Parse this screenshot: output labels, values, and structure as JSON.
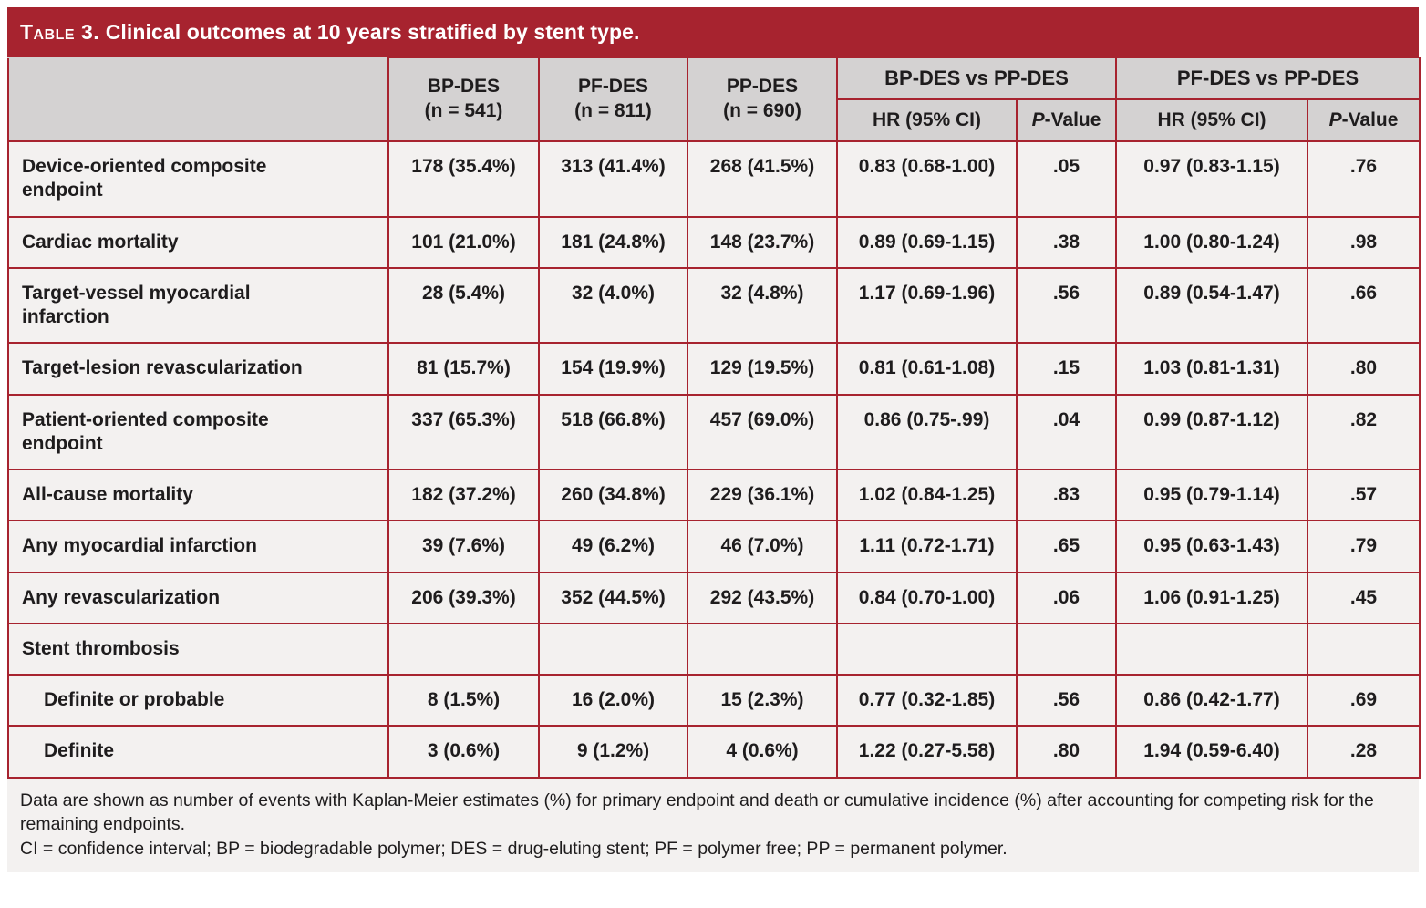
{
  "title": {
    "prefix": "Table 3.",
    "text": "Clinical outcomes at 10 years stratified by stent type."
  },
  "colors": {
    "accent_red": "#A7232F",
    "header_gray": "#D4D2D2",
    "row_offwhite": "#F3F1F0",
    "text": "#1E1C1D",
    "title_text": "#FFFFFF"
  },
  "table": {
    "stent_columns": [
      {
        "name": "BP-DES",
        "n": "(n = 541)"
      },
      {
        "name": "PF-DES",
        "n": "(n = 811)"
      },
      {
        "name": "PP-DES",
        "n": "(n = 690)"
      }
    ],
    "comparisons": [
      {
        "label": "BP-DES vs PP-DES",
        "hr_header": "HR (95% CI)",
        "p_header": "P-Value"
      },
      {
        "label": "PF-DES vs PP-DES",
        "hr_header": "HR (95% CI)",
        "p_header": "P-Value"
      }
    ],
    "rows": [
      {
        "label": "Device-oriented composite endpoint",
        "indent": false,
        "cells": [
          "178 (35.4%)",
          "313 (41.4%)",
          "268 (41.5%)",
          "0.83 (0.68-1.00)",
          ".05",
          "0.97 (0.83-1.15)",
          ".76"
        ]
      },
      {
        "label": "Cardiac mortality",
        "indent": false,
        "cells": [
          "101 (21.0%)",
          "181 (24.8%)",
          "148 (23.7%)",
          "0.89 (0.69-1.15)",
          ".38",
          "1.00 (0.80-1.24)",
          ".98"
        ]
      },
      {
        "label": "Target-vessel myocardial infarction",
        "indent": false,
        "cells": [
          "28 (5.4%)",
          "32 (4.0%)",
          "32 (4.8%)",
          "1.17 (0.69-1.96)",
          ".56",
          "0.89 (0.54-1.47)",
          ".66"
        ]
      },
      {
        "label": "Target-lesion revascularization",
        "indent": false,
        "cells": [
          "81 (15.7%)",
          "154 (19.9%)",
          "129 (19.5%)",
          "0.81 (0.61-1.08)",
          ".15",
          "1.03 (0.81-1.31)",
          ".80"
        ]
      },
      {
        "label": "Patient-oriented composite endpoint",
        "indent": false,
        "cells": [
          "337 (65.3%)",
          "518 (66.8%)",
          "457 (69.0%)",
          "0.86 (0.75-.99)",
          ".04",
          "0.99 (0.87-1.12)",
          ".82"
        ]
      },
      {
        "label": "All-cause mortality",
        "indent": false,
        "cells": [
          "182 (37.2%)",
          "260 (34.8%)",
          "229 (36.1%)",
          "1.02 (0.84-1.25)",
          ".83",
          "0.95 (0.79-1.14)",
          ".57"
        ]
      },
      {
        "label": "Any myocardial infarction",
        "indent": false,
        "cells": [
          "39 (7.6%)",
          "49 (6.2%)",
          "46 (7.0%)",
          "1.11 (0.72-1.71)",
          ".65",
          "0.95 (0.63-1.43)",
          ".79"
        ]
      },
      {
        "label": "Any revascularization",
        "indent": false,
        "cells": [
          "206 (39.3%)",
          "352 (44.5%)",
          "292 (43.5%)",
          "0.84 (0.70-1.00)",
          ".06",
          "1.06 (0.91-1.25)",
          ".45"
        ]
      },
      {
        "label": "Stent thrombosis",
        "indent": false,
        "cells": [
          "",
          "",
          "",
          "",
          "",
          "",
          ""
        ]
      },
      {
        "label": "Definite or probable",
        "indent": true,
        "cells": [
          "8 (1.5%)",
          "16 (2.0%)",
          "15 (2.3%)",
          "0.77 (0.32-1.85)",
          ".56",
          "0.86 (0.42-1.77)",
          ".69"
        ]
      },
      {
        "label": "Definite",
        "indent": true,
        "cells": [
          "3 (0.6%)",
          "9 (1.2%)",
          "4 (0.6%)",
          "1.22 (0.27-5.58)",
          ".80",
          "1.94 (0.59-6.40)",
          ".28"
        ]
      }
    ]
  },
  "footnotes": [
    "Data are shown as number of events with Kaplan-Meier estimates (%) for primary endpoint and death or cumulative incidence (%) after accounting for competing risk for the remaining endpoints.",
    "CI = confidence interval; BP = biodegradable polymer; DES = drug-eluting stent; PF = polymer free; PP = permanent polymer."
  ]
}
